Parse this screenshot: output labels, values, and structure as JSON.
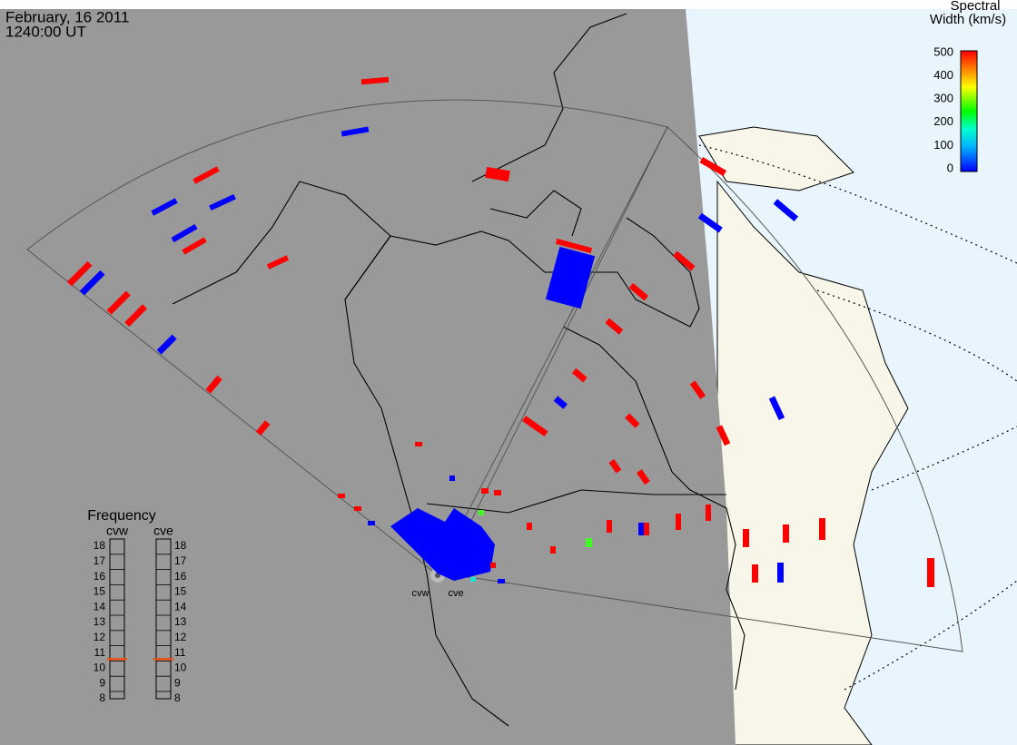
{
  "header": {
    "date": "February, 16 2011",
    "time": "1240:00 UT"
  },
  "colorbar": {
    "title": [
      "Spectral",
      "Width (km/s)"
    ],
    "ticks": [
      0,
      100,
      200,
      300,
      400,
      500
    ],
    "range": [
      0,
      500
    ]
  },
  "frequency": {
    "title": "Frequency",
    "ticks": [
      8,
      9,
      10,
      11,
      12,
      13,
      14,
      15,
      16,
      17,
      18
    ],
    "range": [
      8,
      18
    ],
    "radars": [
      {
        "name": "cvw",
        "value": 10.6
      },
      {
        "name": "cve",
        "value": 10.6
      }
    ]
  },
  "stations": [
    "cvw",
    "cve"
  ]
}
